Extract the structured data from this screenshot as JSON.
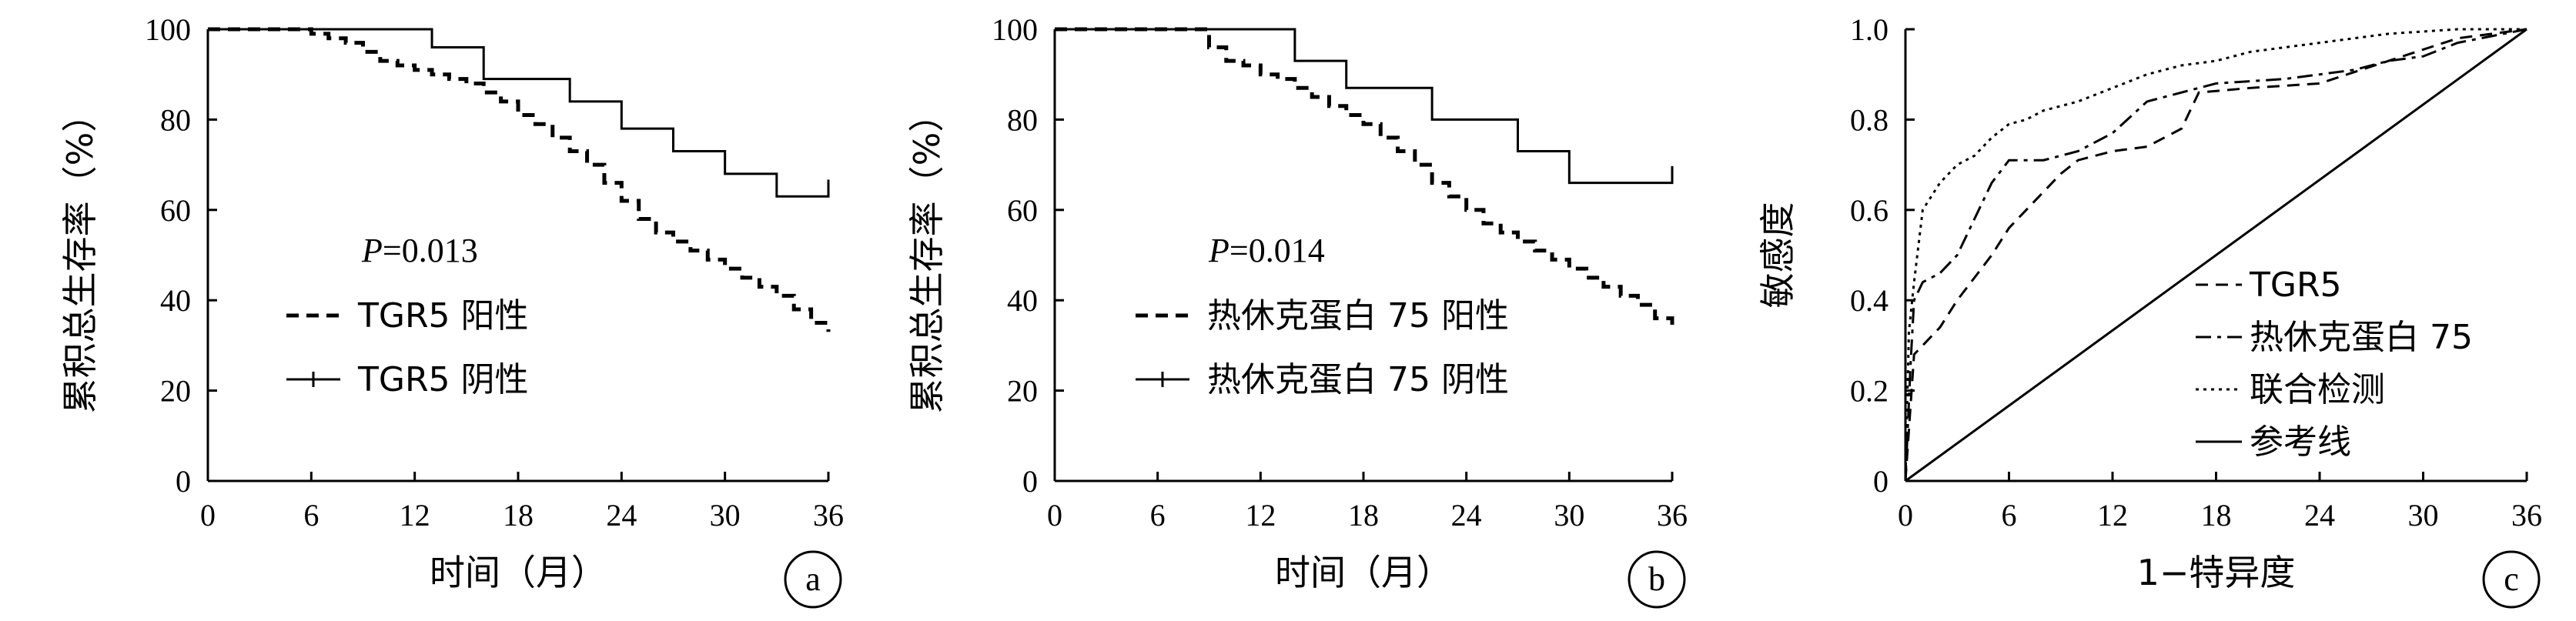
{
  "chart_data": [
    {
      "type": "line",
      "subtype": "kaplan-meier",
      "panel_label": "a",
      "xlabel": "时间（月）",
      "ylabel": "累积总生存率（%）",
      "xlim": [
        0,
        36
      ],
      "ylim": [
        0,
        100
      ],
      "xticks": [
        "0",
        "6",
        "12",
        "18",
        "24",
        "30",
        "36"
      ],
      "yticks": [
        "0",
        "20",
        "40",
        "60",
        "80",
        "100"
      ],
      "annotation": "P=0.013",
      "annotation_italic": "P",
      "annotation_rest": "=0.013",
      "legend_position": "center-left",
      "series": [
        {
          "name": "TGR5 阳性",
          "style": "dashed",
          "x": [
            0,
            5,
            6,
            7,
            8,
            9,
            10,
            11,
            12,
            13,
            14,
            15,
            16,
            17,
            18,
            19,
            20,
            21,
            22,
            23,
            24,
            25,
            26,
            27,
            28,
            29,
            30,
            31,
            32,
            33,
            34,
            35,
            36
          ],
          "y": [
            100,
            100,
            99,
            98,
            97,
            95,
            93,
            92,
            91,
            90,
            89,
            88,
            86,
            84,
            81,
            79,
            76,
            73,
            70,
            66,
            62,
            58,
            55,
            53,
            51,
            49,
            47,
            45,
            43,
            41,
            38,
            35,
            33
          ]
        },
        {
          "name": "TGR5 阴性",
          "style": "solid",
          "x": [
            0,
            13,
            16,
            21,
            24,
            27,
            30,
            33,
            36
          ],
          "y": [
            100,
            96,
            89,
            84,
            78,
            73,
            68,
            63,
            65
          ]
        }
      ]
    },
    {
      "type": "line",
      "subtype": "kaplan-meier",
      "panel_label": "b",
      "xlabel": "时间（月）",
      "ylabel": "累积总生存率（%）",
      "xlim": [
        0,
        36
      ],
      "ylim": [
        0,
        100
      ],
      "xticks": [
        "0",
        "6",
        "12",
        "18",
        "24",
        "30",
        "36"
      ],
      "yticks": [
        "0",
        "20",
        "40",
        "60",
        "80",
        "100"
      ],
      "annotation": "P=0.014",
      "annotation_italic": "P",
      "annotation_rest": "=0.014",
      "legend_position": "center-left",
      "series": [
        {
          "name": "热休克蛋白 75 阳性",
          "style": "dashed",
          "x": [
            0,
            8,
            9,
            10,
            11,
            12,
            13,
            14,
            15,
            16,
            17,
            18,
            19,
            20,
            21,
            22,
            23,
            24,
            25,
            26,
            27,
            28,
            29,
            30,
            31,
            32,
            33,
            34,
            35,
            36
          ],
          "y": [
            100,
            100,
            96,
            93,
            92,
            90,
            89,
            87,
            85,
            83,
            81,
            79,
            76,
            73,
            70,
            66,
            63,
            60,
            57,
            55,
            53,
            51,
            49,
            47,
            45,
            43,
            41,
            39,
            36,
            33
          ]
        },
        {
          "name": "热休克蛋白 75 阴性",
          "style": "solid",
          "x": [
            0,
            14,
            17,
            22,
            27,
            30,
            36
          ],
          "y": [
            100,
            93,
            87,
            80,
            73,
            66,
            68
          ]
        }
      ]
    },
    {
      "type": "line",
      "subtype": "roc",
      "panel_label": "c",
      "xlabel": "1−特异度",
      "ylabel": "敏感度",
      "xlim": [
        0,
        36
      ],
      "ylim": [
        0,
        1.0
      ],
      "xticks": [
        "0",
        "6",
        "12",
        "18",
        "24",
        "30",
        "36"
      ],
      "yticks": [
        "0",
        "0.2",
        "0.4",
        "0.6",
        "0.8",
        "1.0"
      ],
      "legend_position": "center-right",
      "series": [
        {
          "name": "TGR5",
          "style": "dashed",
          "x": [
            0,
            0.5,
            1,
            2,
            3,
            4,
            5,
            6,
            7,
            8,
            9,
            10,
            12,
            14,
            16,
            17,
            20,
            24,
            28,
            32,
            36
          ],
          "y": [
            0,
            0.28,
            0.3,
            0.34,
            0.4,
            0.45,
            0.5,
            0.56,
            0.6,
            0.64,
            0.68,
            0.71,
            0.73,
            0.74,
            0.78,
            0.86,
            0.87,
            0.88,
            0.93,
            0.98,
            1.0
          ]
        },
        {
          "name": "热休克蛋白 75",
          "style": "dashdot",
          "x": [
            0,
            0.3,
            0.5,
            1,
            2,
            3,
            4,
            5,
            6,
            8,
            10,
            12,
            14,
            18,
            22,
            26,
            28,
            30,
            32,
            36
          ],
          "y": [
            0,
            0.26,
            0.4,
            0.44,
            0.46,
            0.5,
            0.58,
            0.66,
            0.71,
            0.71,
            0.73,
            0.77,
            0.84,
            0.88,
            0.89,
            0.91,
            0.93,
            0.94,
            0.97,
            1.0
          ]
        },
        {
          "name": "联合检测",
          "style": "dotted",
          "x": [
            0,
            0.2,
            0.5,
            1,
            2,
            3,
            4,
            5,
            6,
            7,
            8,
            9,
            10,
            12,
            14,
            16,
            18,
            20,
            24,
            28,
            32,
            36
          ],
          "y": [
            0,
            0.33,
            0.44,
            0.6,
            0.66,
            0.7,
            0.72,
            0.76,
            0.79,
            0.8,
            0.82,
            0.83,
            0.84,
            0.87,
            0.9,
            0.92,
            0.93,
            0.95,
            0.97,
            0.99,
            1.0,
            1.0
          ]
        },
        {
          "name": "参考线",
          "style": "solid",
          "x": [
            0,
            36
          ],
          "y": [
            0,
            1.0
          ]
        }
      ]
    }
  ]
}
